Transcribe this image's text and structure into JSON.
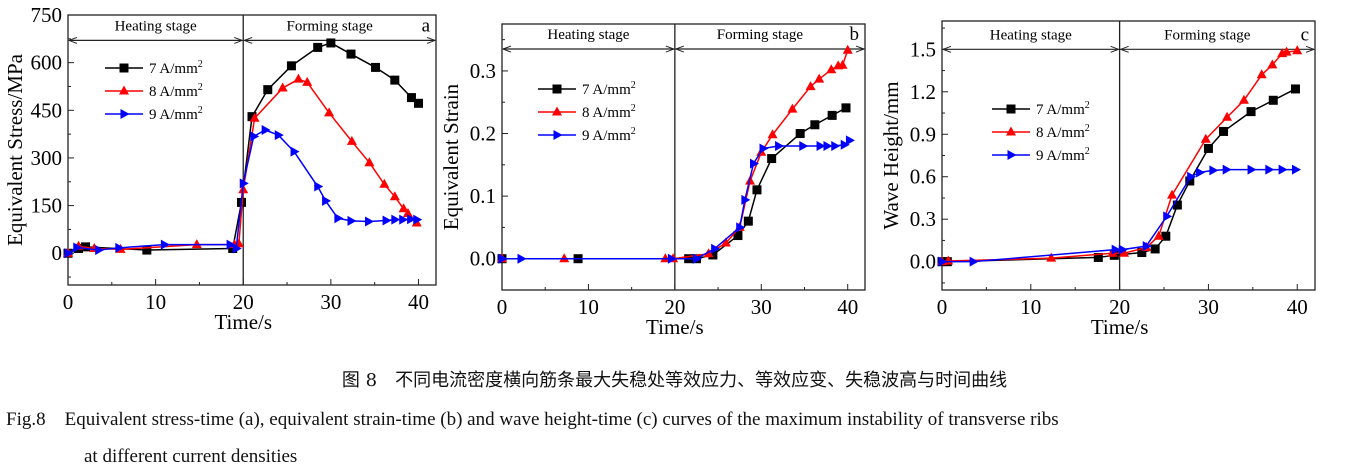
{
  "chart_data": [
    {
      "panel_label": "a",
      "type": "line",
      "xlabel": "Time/s",
      "ylabel": "Equivalent Stress/MPa",
      "xlim": [
        0,
        42
      ],
      "ylim": [
        -100,
        750
      ],
      "xticks": [
        0,
        10,
        20,
        30,
        40
      ],
      "yticks": [
        0,
        150,
        300,
        450,
        600,
        750
      ],
      "ytick_labels": [
        "0",
        "150",
        "300",
        "450",
        "600",
        "750"
      ],
      "xtick_labels": [
        "0",
        "10",
        "20",
        "30",
        "40"
      ],
      "stage_divider_x": 20,
      "stage_arrow_y": 670,
      "stages": [
        "Heating stage",
        "Forming stage"
      ],
      "legend_position": "upper-left",
      "grid": false,
      "series": [
        {
          "name": "7 A/mm²",
          "color": "#000000",
          "marker": "square",
          "points": [
            [
              0,
              0
            ],
            [
              1.2,
              15
            ],
            [
              2,
              20
            ],
            [
              9,
              10
            ],
            [
              18.8,
              15
            ],
            [
              19.8,
              160
            ],
            [
              21,
              430
            ],
            [
              22.8,
              515
            ],
            [
              25.5,
              590
            ],
            [
              28.5,
              648
            ],
            [
              30,
              662
            ],
            [
              32.3,
              627
            ],
            [
              35.1,
              585
            ],
            [
              37.3,
              545
            ],
            [
              39.2,
              490
            ],
            [
              40,
              472
            ]
          ]
        },
        {
          "name": "8 A/mm²",
          "color": "#ff0000",
          "marker": "triangle-up",
          "points": [
            [
              0,
              0
            ],
            [
              1.2,
              22
            ],
            [
              3,
              15
            ],
            [
              6,
              12
            ],
            [
              14.7,
              27
            ],
            [
              19,
              27
            ],
            [
              19.5,
              30
            ],
            [
              20,
              200
            ],
            [
              21.3,
              425
            ],
            [
              24.5,
              520
            ],
            [
              26.3,
              548
            ],
            [
              27.3,
              538
            ],
            [
              29.8,
              442
            ],
            [
              32.4,
              352
            ],
            [
              34.4,
              285
            ],
            [
              36.1,
              217
            ],
            [
              37.3,
              178
            ],
            [
              38.3,
              140
            ],
            [
              38.8,
              125
            ],
            [
              39.8,
              95
            ]
          ]
        },
        {
          "name": "9 A/mm²",
          "color": "#0000ff",
          "marker": "triangle-right",
          "points": [
            [
              0,
              0
            ],
            [
              1,
              18
            ],
            [
              3.5,
              10
            ],
            [
              5.8,
              17
            ],
            [
              11,
              27
            ],
            [
              18.5,
              27
            ],
            [
              19.2,
              15
            ],
            [
              20,
              220
            ],
            [
              21.2,
              368
            ],
            [
              22.5,
              388
            ],
            [
              24,
              372
            ],
            [
              25.8,
              320
            ],
            [
              28.5,
              210
            ],
            [
              29.4,
              165
            ],
            [
              30.8,
              110
            ],
            [
              32.3,
              102
            ],
            [
              34.3,
              100
            ],
            [
              36.3,
              103
            ],
            [
              37.3,
              106
            ],
            [
              38.2,
              106
            ],
            [
              39.1,
              107
            ],
            [
              39.8,
              106
            ]
          ]
        }
      ]
    },
    {
      "panel_label": "b",
      "type": "line",
      "xlabel": "Time/s",
      "ylabel": "Equivalent Strain",
      "xlim": [
        0,
        42
      ],
      "ylim": [
        -0.05,
        0.375
      ],
      "xticks": [
        0,
        10,
        20,
        30,
        40
      ],
      "yticks": [
        0,
        0.1,
        0.2,
        0.3
      ],
      "ytick_labels": [
        "0.0",
        "0.1",
        "0.2",
        "0.3"
      ],
      "xtick_labels": [
        "0",
        "10",
        "20",
        "30",
        "40"
      ],
      "stage_divider_x": 20,
      "stage_arrow_y": 0.335,
      "stages": [
        "Heating stage",
        "Forming stage"
      ],
      "legend_position": "upper-left",
      "grid": false,
      "series": [
        {
          "name": "7 A/mm²",
          "color": "#000000",
          "marker": "square",
          "points": [
            [
              0,
              0
            ],
            [
              8.8,
              0
            ],
            [
              21.6,
              0
            ],
            [
              22.5,
              0
            ],
            [
              24.4,
              0.006
            ],
            [
              27.3,
              0.037
            ],
            [
              28.5,
              0.06
            ],
            [
              29.5,
              0.11
            ],
            [
              31.2,
              0.16
            ],
            [
              34.5,
              0.2
            ],
            [
              36.2,
              0.214
            ],
            [
              38.2,
              0.229
            ],
            [
              39.8,
              0.241
            ]
          ]
        },
        {
          "name": "8 A/mm²",
          "color": "#ff0000",
          "marker": "triangle-up",
          "points": [
            [
              0,
              0
            ],
            [
              7.2,
              0
            ],
            [
              18.9,
              0
            ],
            [
              19.8,
              0
            ],
            [
              23.9,
              0.008
            ],
            [
              25.9,
              0.025
            ],
            [
              27.5,
              0.05
            ],
            [
              28.7,
              0.124
            ],
            [
              30,
              0.17
            ],
            [
              31.3,
              0.198
            ],
            [
              33.6,
              0.239
            ],
            [
              35.7,
              0.275
            ],
            [
              36.7,
              0.287
            ],
            [
              38.1,
              0.302
            ],
            [
              38.9,
              0.308
            ],
            [
              39.4,
              0.309
            ],
            [
              40,
              0.333
            ]
          ]
        },
        {
          "name": "9 A/mm²",
          "color": "#0000ff",
          "marker": "triangle-right",
          "points": [
            [
              0,
              0
            ],
            [
              2.2,
              0
            ],
            [
              19.6,
              0
            ],
            [
              22.5,
              0
            ],
            [
              24.6,
              0.016
            ],
            [
              27.5,
              0.05
            ],
            [
              28.1,
              0.094
            ],
            [
              29.1,
              0.152
            ],
            [
              30.2,
              0.176
            ],
            [
              32,
              0.18
            ],
            [
              34.8,
              0.18
            ],
            [
              36.8,
              0.18
            ],
            [
              37.6,
              0.18
            ],
            [
              38.5,
              0.18
            ],
            [
              39.6,
              0.182
            ],
            [
              40.2,
              0.189
            ]
          ]
        }
      ]
    },
    {
      "panel_label": "c",
      "type": "line",
      "xlabel": "Time/s",
      "ylabel": "Wave Height/mm",
      "xlim": [
        0,
        42
      ],
      "ylim": [
        -0.2,
        1.7
      ],
      "xticks": [
        0,
        10,
        20,
        30,
        40
      ],
      "yticks": [
        0,
        0.3,
        0.6,
        0.9,
        1.2,
        1.5
      ],
      "ytick_labels": [
        "0.0",
        "0.3",
        "0.6",
        "0.9",
        "1.2",
        "1.5"
      ],
      "xtick_labels": [
        "0",
        "10",
        "20",
        "30",
        "40"
      ],
      "stage_divider_x": 20,
      "stage_arrow_y": 1.5,
      "stages": [
        "Heating stage",
        "Forming stage"
      ],
      "legend_position": "center-left",
      "grid": false,
      "series": [
        {
          "name": "7 A/mm²",
          "color": "#000000",
          "marker": "square",
          "points": [
            [
              0,
              0
            ],
            [
              0.6,
              0
            ],
            [
              17.6,
              0.03
            ],
            [
              19.4,
              0.045
            ],
            [
              22.5,
              0.065
            ],
            [
              24,
              0.09
            ],
            [
              25.2,
              0.18
            ],
            [
              26.5,
              0.4
            ],
            [
              27.9,
              0.57
            ],
            [
              30,
              0.8
            ],
            [
              31.7,
              0.92
            ],
            [
              34.8,
              1.06
            ],
            [
              37.3,
              1.14
            ],
            [
              39.8,
              1.22
            ]
          ]
        },
        {
          "name": "8 A/mm²",
          "color": "#ff0000",
          "marker": "triangle-up",
          "points": [
            [
              0,
              0
            ],
            [
              0.7,
              0.005
            ],
            [
              12.3,
              0.025
            ],
            [
              19.2,
              0.06
            ],
            [
              20.5,
              0.06
            ],
            [
              23,
              0.1
            ],
            [
              24.4,
              0.18
            ],
            [
              25.9,
              0.47
            ],
            [
              29.7,
              0.865
            ],
            [
              32.1,
              1.02
            ],
            [
              34,
              1.14
            ],
            [
              36,
              1.32
            ],
            [
              37.2,
              1.39
            ],
            [
              38.3,
              1.47
            ],
            [
              38.8,
              1.48
            ],
            [
              40,
              1.49
            ]
          ]
        },
        {
          "name": "9 A/mm²",
          "color": "#0000ff",
          "marker": "triangle-right",
          "points": [
            [
              0,
              0
            ],
            [
              3.5,
              0
            ],
            [
              19.5,
              0.085
            ],
            [
              20.3,
              0.085
            ],
            [
              23,
              0.11
            ],
            [
              25.3,
              0.32
            ],
            [
              28,
              0.6
            ],
            [
              29,
              0.63
            ],
            [
              30.5,
              0.645
            ],
            [
              32,
              0.65
            ],
            [
              34.8,
              0.65
            ],
            [
              36.8,
              0.65
            ],
            [
              38.3,
              0.65
            ],
            [
              39.8,
              0.65
            ]
          ]
        }
      ]
    }
  ],
  "caption": {
    "cn": "图 8　不同电流密度横向筋条最大失稳处等效应力、等效应变、失稳波高与时间曲线",
    "en_line1": "Fig.8　Equivalent stress-time (a), equivalent strain-time (b) and wave height-time (c) curves of the maximum instability of transverse ribs",
    "en_line2": "at different current densities"
  }
}
